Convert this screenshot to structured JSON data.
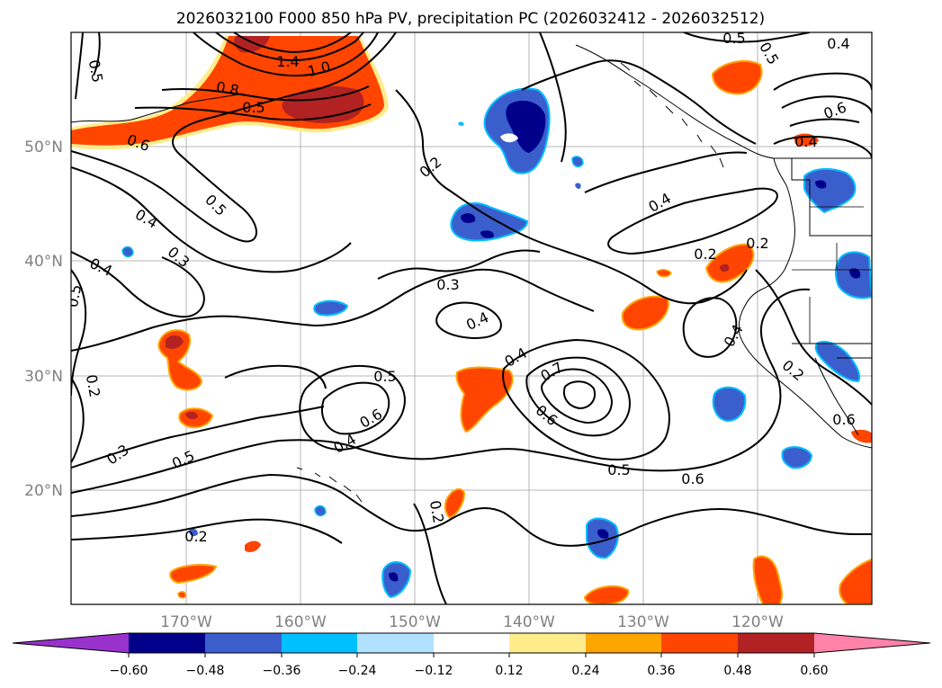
{
  "title": "2026032100 F000 850 hPa PV, precipitation PC (2026032412 - 2026032512)",
  "lat_labels": [
    "50°N",
    "40°N",
    "30°N",
    "20°N"
  ],
  "lon_labels": [
    "170°W",
    "160°W",
    "150°W",
    "140°W",
    "130°W",
    "120°W"
  ],
  "contour_labels": [
    "0.5",
    "1.4",
    "1.0",
    "0.8",
    "0.5",
    "0.6",
    "0.5",
    "0.4",
    "0.3",
    "0.4",
    "0.5",
    "0.2",
    "0.2",
    "0.5",
    "0.4",
    "0.6",
    "0.4",
    "0.4",
    "0.2",
    "0.2",
    "0.3",
    "0.4",
    "0.4",
    "0.7",
    "0.6",
    "0.5",
    "0.6",
    "0.4",
    "0.5",
    "0.6",
    "0.3",
    "0.5",
    "0.2",
    "0.2",
    "0.5",
    "0.6",
    "0.2",
    "0.4"
  ],
  "colorbar": {
    "colors": [
      "#9932cc",
      "#00008b",
      "#3a5fcd",
      "#00bfff",
      "#b0e2ff",
      "#ffffff",
      "#ffec8b",
      "#ffa500",
      "#ff4500",
      "#b22222",
      "#ff82ab"
    ],
    "tick_labels": [
      "−0.60",
      "−0.48",
      "−0.36",
      "−0.24",
      "−0.12",
      "0.12",
      "0.24",
      "0.36",
      "0.48",
      "0.60"
    ]
  },
  "legend_colors": {
    "pos_light": "#ffec8b",
    "pos_mid": "#ffa500",
    "pos_strong": "#ff4500",
    "pos_max": "#b22222",
    "neg_light": "#b0e2ff",
    "neg_mid": "#00bfff",
    "neg_strong": "#3a5fcd",
    "neg_max": "#00008b"
  }
}
